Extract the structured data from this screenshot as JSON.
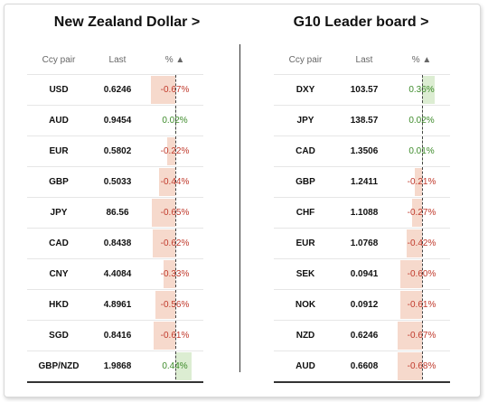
{
  "left": {
    "title": "New Zealand Dollar >",
    "headers": {
      "pair": "Ccy pair",
      "last": "Last",
      "pct": "% ▲"
    },
    "rows": [
      {
        "pair": "USD",
        "last": "0.6246",
        "pct": "-0.67%",
        "value": -0.67
      },
      {
        "pair": "AUD",
        "last": "0.9454",
        "pct": "0.02%",
        "value": 0.02
      },
      {
        "pair": "EUR",
        "last": "0.5802",
        "pct": "-0.22%",
        "value": -0.22
      },
      {
        "pair": "GBP",
        "last": "0.5033",
        "pct": "-0.44%",
        "value": -0.44
      },
      {
        "pair": "JPY",
        "last": "86.56",
        "pct": "-0.65%",
        "value": -0.65
      },
      {
        "pair": "CAD",
        "last": "0.8438",
        "pct": "-0.62%",
        "value": -0.62
      },
      {
        "pair": "CNY",
        "last": "4.4084",
        "pct": "-0.33%",
        "value": -0.33
      },
      {
        "pair": "HKD",
        "last": "4.8961",
        "pct": "-0.56%",
        "value": -0.56
      },
      {
        "pair": "SGD",
        "last": "0.8416",
        "pct": "-0.61%",
        "value": -0.61
      },
      {
        "pair": "GBP/NZD",
        "last": "1.9868",
        "pct": "0.44%",
        "value": 0.44
      }
    ]
  },
  "right": {
    "title": "G10 Leader board >",
    "headers": {
      "pair": "Ccy pair",
      "last": "Last",
      "pct": "% ▲"
    },
    "rows": [
      {
        "pair": "DXY",
        "last": "103.57",
        "pct": "0.36%",
        "value": 0.36
      },
      {
        "pair": "JPY",
        "last": "138.57",
        "pct": "0.02%",
        "value": 0.02
      },
      {
        "pair": "CAD",
        "last": "1.3506",
        "pct": "0.01%",
        "value": 0.01
      },
      {
        "pair": "GBP",
        "last": "1.2411",
        "pct": "-0.21%",
        "value": -0.21
      },
      {
        "pair": "CHF",
        "last": "1.1088",
        "pct": "-0.27%",
        "value": -0.27
      },
      {
        "pair": "EUR",
        "last": "1.0768",
        "pct": "-0.42%",
        "value": -0.42
      },
      {
        "pair": "SEK",
        "last": "0.0941",
        "pct": "-0.60%",
        "value": -0.6
      },
      {
        "pair": "NOK",
        "last": "0.0912",
        "pct": "-0.61%",
        "value": -0.61
      },
      {
        "pair": "NZD",
        "last": "0.6246",
        "pct": "-0.67%",
        "value": -0.67
      },
      {
        "pair": "AUD",
        "last": "0.6608",
        "pct": "-0.68%",
        "value": -0.68
      }
    ]
  },
  "colors": {
    "negative": "#c0392b",
    "positive": "#3d8b2a",
    "negative_bar": "#f6d9cc",
    "positive_bar": "#dcedd2"
  }
}
